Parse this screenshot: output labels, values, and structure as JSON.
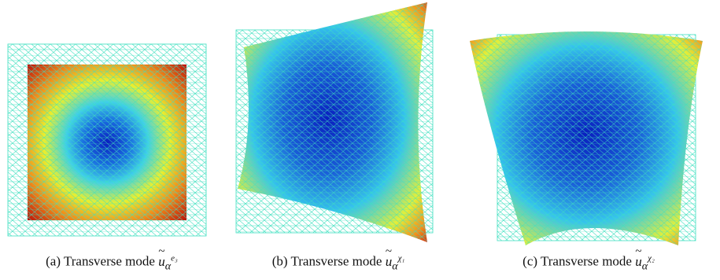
{
  "figures": [
    {
      "id": "a",
      "caption_prefix": "(a) Transverse mode ",
      "symbol": "u",
      "subscript": "α",
      "superscript": "e₃"
    },
    {
      "id": "b",
      "caption_prefix": "(b) Transverse mode ",
      "symbol": "u",
      "subscript": "α",
      "superscript": "χ₁"
    },
    {
      "id": "c",
      "caption_prefix": "(c) Transverse mode ",
      "symbol": "u",
      "subscript": "α",
      "superscript": "χ₂"
    }
  ],
  "colors": {
    "mesh": "#3fe0c0",
    "low": "#0a1fbf",
    "mid": "#22b8e8",
    "high": "#f0e020",
    "max": "#c81010"
  }
}
